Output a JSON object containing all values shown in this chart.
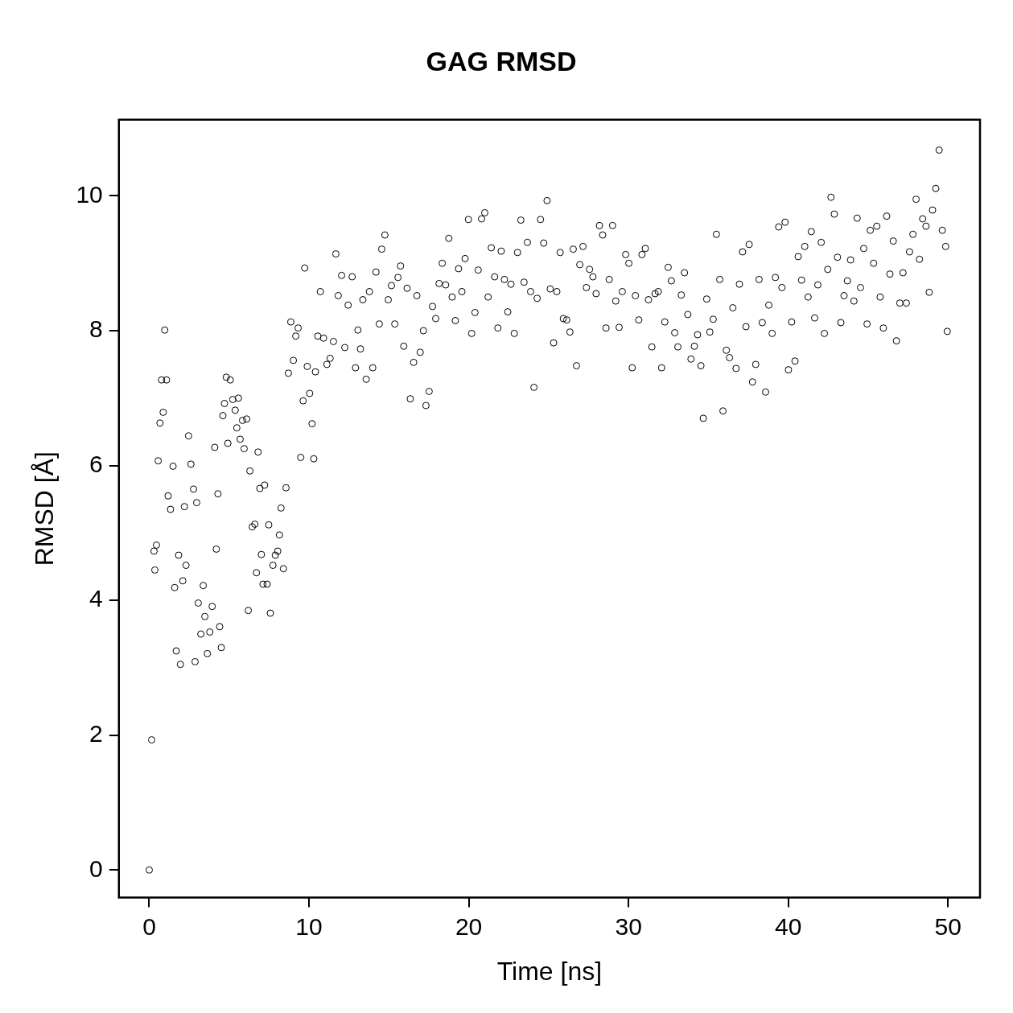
{
  "chart_data": {
    "type": "scatter",
    "title": "GAG RMSD",
    "xlabel": "Time [ns]",
    "ylabel": "RMSD [Å]",
    "color": "#000000",
    "marker": "circle",
    "xlim": [
      -1.9,
      52.0
    ],
    "ylim": [
      -0.41,
      11.13
    ],
    "xticks": [
      0,
      10,
      20,
      30,
      40,
      50
    ],
    "yticks": [
      0,
      2,
      4,
      6,
      8,
      10
    ],
    "x": [
      0,
      0.15,
      0.3,
      0.35,
      0.45,
      0.56,
      0.67,
      0.77,
      0.87,
      0.97,
      1.08,
      1.18,
      1.33,
      1.49,
      1.59,
      1.69,
      1.84,
      1.95,
      2.1,
      2.2,
      2.3,
      2.46,
      2.61,
      2.77,
      2.87,
      2.97,
      3.07,
      3.23,
      3.38,
      3.48,
      3.64,
      3.79,
      3.94,
      4.1,
      4.2,
      4.3,
      4.41,
      4.51,
      4.61,
      4.71,
      4.82,
      4.92,
      5.07,
      5.23,
      5.38,
      5.48,
      5.58,
      5.69,
      5.84,
      5.94,
      6.1,
      6.2,
      6.3,
      6.45,
      6.61,
      6.71,
      6.81,
      6.92,
      7.02,
      7.12,
      7.22,
      7.38,
      7.48,
      7.58,
      7.74,
      7.89,
      8.04,
      8.15,
      8.25,
      8.4,
      8.56,
      8.71,
      8.86,
      9.02,
      9.17,
      9.32,
      9.48,
      9.63,
      9.73,
      9.89,
      10.04,
      10.19,
      10.3,
      10.4,
      10.55,
      10.71,
      10.91,
      11.12,
      11.32,
      11.53,
      11.68,
      11.83,
      12.04,
      12.24,
      12.45,
      12.7,
      12.91,
      13.06,
      13.22,
      13.37,
      13.58,
      13.78,
      13.99,
      14.19,
      14.4,
      14.55,
      14.75,
      14.96,
      15.16,
      15.37,
      15.57,
      15.73,
      15.93,
      16.14,
      16.34,
      16.55,
      16.75,
      16.96,
      17.16,
      17.32,
      17.52,
      17.73,
      17.93,
      18.14,
      18.34,
      18.55,
      18.75,
      18.96,
      19.16,
      19.36,
      19.57,
      19.77,
      19.98,
      20.18,
      20.39,
      20.59,
      20.8,
      21.0,
      21.21,
      21.41,
      21.62,
      21.82,
      22.03,
      22.23,
      22.44,
      22.64,
      22.85,
      23.05,
      23.26,
      23.46,
      23.67,
      23.87,
      24.08,
      24.28,
      24.49,
      24.69,
      24.9,
      25.1,
      25.31,
      25.51,
      25.72,
      25.92,
      26.13,
      26.33,
      26.54,
      26.74,
      26.95,
      27.15,
      27.36,
      27.56,
      27.77,
      27.97,
      28.18,
      28.38,
      28.59,
      28.79,
      29.0,
      29.2,
      29.41,
      29.61,
      29.82,
      30.02,
      30.23,
      30.43,
      30.64,
      30.84,
      31.05,
      31.25,
      31.46,
      31.66,
      31.86,
      32.07,
      32.27,
      32.48,
      32.68,
      32.89,
      33.09,
      33.3,
      33.5,
      33.71,
      33.91,
      34.12,
      34.32,
      34.53,
      34.68,
      34.89,
      35.09,
      35.3,
      35.5,
      35.71,
      35.91,
      36.12,
      36.32,
      36.53,
      36.73,
      36.94,
      37.14,
      37.35,
      37.55,
      37.76,
      37.96,
      38.17,
      38.37,
      38.58,
      38.78,
      38.99,
      39.19,
      39.4,
      39.6,
      39.8,
      40.01,
      40.21,
      40.42,
      40.62,
      40.83,
      41.03,
      41.24,
      41.44,
      41.65,
      41.85,
      42.06,
      42.26,
      42.47,
      42.67,
      42.88,
      43.08,
      43.29,
      43.49,
      43.7,
      43.9,
      44.11,
      44.31,
      44.52,
      44.72,
      44.93,
      45.13,
      45.34,
      45.54,
      45.75,
      45.95,
      46.16,
      46.36,
      46.57,
      46.77,
      46.98,
      47.18,
      47.39,
      47.59,
      47.8,
      48.0,
      48.21,
      48.41,
      48.62,
      48.82,
      49.03,
      49.23,
      49.44,
      49.64,
      49.85,
      49.95
    ],
    "values": [
      0,
      1.93,
      4.73,
      4.45,
      4.82,
      6.07,
      6.63,
      7.27,
      6.79,
      8.01,
      7.27,
      5.55,
      5.35,
      5.99,
      4.19,
      3.25,
      4.67,
      3.05,
      4.29,
      5.39,
      4.52,
      6.44,
      6.02,
      5.65,
      3.09,
      5.45,
      3.96,
      3.5,
      4.22,
      3.76,
      3.21,
      3.53,
      3.91,
      6.27,
      4.76,
      5.58,
      3.61,
      3.3,
      6.74,
      6.92,
      7.31,
      6.33,
      7.27,
      6.98,
      6.82,
      6.56,
      7.0,
      6.39,
      6.67,
      6.25,
      6.69,
      3.85,
      5.92,
      5.09,
      5.13,
      4.41,
      6.2,
      5.66,
      4.68,
      4.24,
      5.71,
      4.24,
      5.12,
      3.81,
      4.52,
      4.67,
      4.73,
      4.97,
      5.37,
      4.47,
      5.67,
      7.37,
      8.13,
      7.56,
      7.92,
      8.04,
      6.12,
      6.96,
      8.93,
      7.47,
      7.07,
      6.62,
      6.1,
      7.39,
      7.92,
      8.58,
      7.89,
      7.5,
      7.59,
      7.84,
      9.14,
      8.52,
      8.82,
      7.75,
      8.38,
      8.8,
      7.45,
      8.01,
      7.73,
      8.46,
      7.28,
      8.58,
      7.45,
      8.87,
      8.1,
      9.21,
      9.42,
      8.46,
      8.67,
      8.1,
      8.79,
      8.96,
      7.77,
      8.63,
      6.99,
      7.53,
      8.52,
      7.68,
      8.0,
      6.89,
      7.1,
      8.36,
      8.18,
      8.7,
      9.0,
      8.68,
      9.37,
      8.5,
      8.15,
      8.92,
      8.58,
      9.07,
      9.65,
      7.96,
      8.27,
      8.9,
      9.66,
      9.75,
      8.5,
      9.23,
      8.8,
      8.04,
      9.18,
      8.76,
      8.28,
      8.69,
      7.96,
      9.16,
      9.64,
      8.72,
      9.31,
      8.58,
      7.16,
      8.48,
      9.65,
      9.3,
      9.93,
      8.62,
      7.82,
      8.58,
      9.16,
      8.18,
      8.16,
      7.98,
      9.21,
      7.48,
      8.98,
      9.25,
      8.64,
      8.91,
      8.8,
      8.55,
      9.56,
      9.42,
      8.04,
      8.76,
      9.56,
      8.44,
      8.05,
      8.58,
      9.13,
      9.0,
      7.45,
      8.52,
      8.16,
      9.13,
      9.22,
      8.46,
      7.76,
      8.55,
      8.58,
      7.45,
      8.13,
      8.94,
      8.74,
      7.97,
      7.76,
      8.53,
      8.86,
      8.24,
      7.58,
      7.77,
      7.94,
      7.48,
      6.7,
      8.47,
      7.98,
      8.17,
      9.43,
      8.76,
      6.81,
      7.71,
      7.6,
      8.34,
      7.44,
      8.69,
      9.17,
      8.06,
      9.28,
      7.24,
      7.5,
      8.76,
      8.12,
      7.09,
      8.38,
      7.96,
      8.79,
      9.54,
      8.64,
      9.61,
      7.42,
      8.13,
      7.55,
      9.1,
      8.75,
      9.25,
      8.5,
      9.47,
      8.19,
      8.68,
      9.31,
      7.96,
      8.91,
      9.98,
      9.73,
      9.09,
      8.12,
      8.52,
      8.74,
      9.05,
      8.44,
      9.67,
      8.64,
      9.22,
      8.1,
      9.49,
      9.0,
      9.55,
      8.5,
      8.04,
      9.7,
      8.84,
      9.33,
      7.85,
      8.41,
      8.86,
      8.41,
      9.17,
      9.43,
      9.95,
      9.06,
      9.66,
      9.55,
      8.57,
      9.79,
      10.11,
      10.68,
      9.49,
      9.25,
      7.99
    ]
  }
}
